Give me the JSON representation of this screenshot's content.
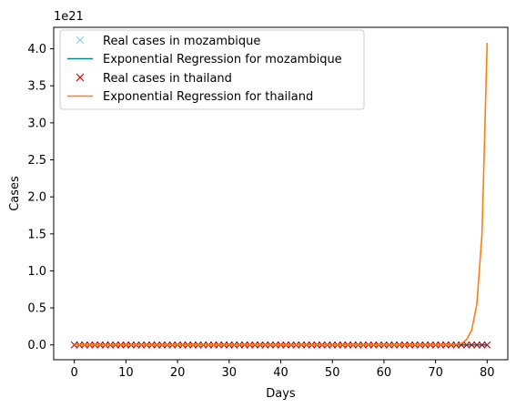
{
  "chart_data": {
    "type": "line",
    "xlabel": "Days",
    "ylabel": "Cases",
    "offset_text": "1e21",
    "xlim": [
      -4,
      84
    ],
    "ylim": [
      -0.2,
      4.29
    ],
    "xticks": [
      0,
      10,
      20,
      30,
      40,
      50,
      60,
      70,
      80
    ],
    "xtick_labels": [
      "0",
      "10",
      "20",
      "30",
      "40",
      "50",
      "60",
      "70",
      "80"
    ],
    "yticks": [
      0.0,
      0.5,
      1.0,
      1.5,
      2.0,
      2.5,
      3.0,
      3.5,
      4.0
    ],
    "ytick_labels": [
      "0.0",
      "0.5",
      "1.0",
      "1.5",
      "2.0",
      "2.5",
      "3.0",
      "3.5",
      "4.0"
    ],
    "grid": false,
    "legend_position": "top-left",
    "series": [
      {
        "name": "Real cases in mozambique",
        "kind": "marker",
        "marker": "x",
        "color": "#87ceeb",
        "x": [
          0,
          1,
          2,
          3,
          4,
          5,
          6,
          7,
          8,
          9,
          10,
          11,
          12,
          13,
          14,
          15,
          16,
          17,
          18,
          19,
          20,
          21,
          22,
          23,
          24,
          25,
          26,
          27,
          28,
          29,
          30,
          31,
          32,
          33,
          34,
          35,
          36,
          37,
          38,
          39,
          40,
          41,
          42,
          43,
          44,
          45,
          46,
          47,
          48,
          49,
          50,
          51,
          52,
          53,
          54,
          55,
          56,
          57,
          58,
          59,
          60,
          61,
          62,
          63,
          64,
          65,
          66,
          67,
          68,
          69,
          70,
          71,
          72,
          73,
          74,
          75,
          76,
          77,
          78,
          79,
          80
        ],
        "y": [
          0,
          0,
          0,
          0,
          0,
          0,
          0,
          0,
          0,
          0,
          0,
          0,
          0,
          0,
          0,
          0,
          0,
          0,
          0,
          0,
          0,
          0,
          0,
          0,
          0,
          0,
          0,
          0,
          0,
          0,
          0,
          0,
          0,
          0,
          0,
          0,
          0,
          0,
          0,
          0,
          0,
          0,
          0,
          0,
          0,
          0,
          0,
          0,
          0,
          0,
          0,
          0,
          0,
          0,
          0,
          0,
          0,
          0,
          0,
          0,
          0,
          0,
          0,
          0,
          0,
          0,
          0,
          0,
          0,
          0,
          0,
          0,
          0,
          0,
          0,
          0,
          0,
          0,
          0,
          0,
          0
        ]
      },
      {
        "name": "Exponential Regression for mozambique",
        "kind": "line",
        "color": "#008b8b",
        "x": [
          0,
          80
        ],
        "y": [
          0,
          0
        ]
      },
      {
        "name": "Real cases in thailand",
        "kind": "marker",
        "marker": "x",
        "color": "#cc0000",
        "x": [
          0,
          1,
          2,
          3,
          4,
          5,
          6,
          7,
          8,
          9,
          10,
          11,
          12,
          13,
          14,
          15,
          16,
          17,
          18,
          19,
          20,
          21,
          22,
          23,
          24,
          25,
          26,
          27,
          28,
          29,
          30,
          31,
          32,
          33,
          34,
          35,
          36,
          37,
          38,
          39,
          40,
          41,
          42,
          43,
          44,
          45,
          46,
          47,
          48,
          49,
          50,
          51,
          52,
          53,
          54,
          55,
          56,
          57,
          58,
          59,
          60,
          61,
          62,
          63,
          64,
          65,
          66,
          67,
          68,
          69,
          70,
          71,
          72,
          73,
          74,
          75,
          76,
          77,
          78,
          79,
          80
        ],
        "y": [
          0,
          0,
          0,
          0,
          0,
          0,
          0,
          0,
          0,
          0,
          0,
          0,
          0,
          0,
          0,
          0,
          0,
          0,
          0,
          0,
          0,
          0,
          0,
          0,
          0,
          0,
          0,
          0,
          0,
          0,
          0,
          0,
          0,
          0,
          0,
          0,
          0,
          0,
          0,
          0,
          0,
          0,
          0,
          0,
          0,
          0,
          0,
          0,
          0,
          0,
          0,
          0,
          0,
          0,
          0,
          0,
          0,
          0,
          0,
          0,
          0,
          0,
          0,
          0,
          0,
          0,
          0,
          0,
          0,
          0,
          0,
          0,
          0,
          0,
          0,
          0,
          0,
          0,
          0,
          0,
          0
        ]
      },
      {
        "name": "Exponential Regression for thailand",
        "kind": "line",
        "color": "#ff7f0e",
        "x": [
          0,
          10,
          20,
          30,
          40,
          50,
          60,
          70,
          72,
          73,
          74,
          75,
          76,
          77,
          78,
          79,
          80
        ],
        "y": [
          0,
          0,
          0,
          0,
          0,
          0,
          0,
          0.0005,
          0.0013,
          0.003,
          0.0075,
          0.02,
          0.07,
          0.2,
          0.55,
          1.5,
          4.08
        ]
      }
    ]
  }
}
